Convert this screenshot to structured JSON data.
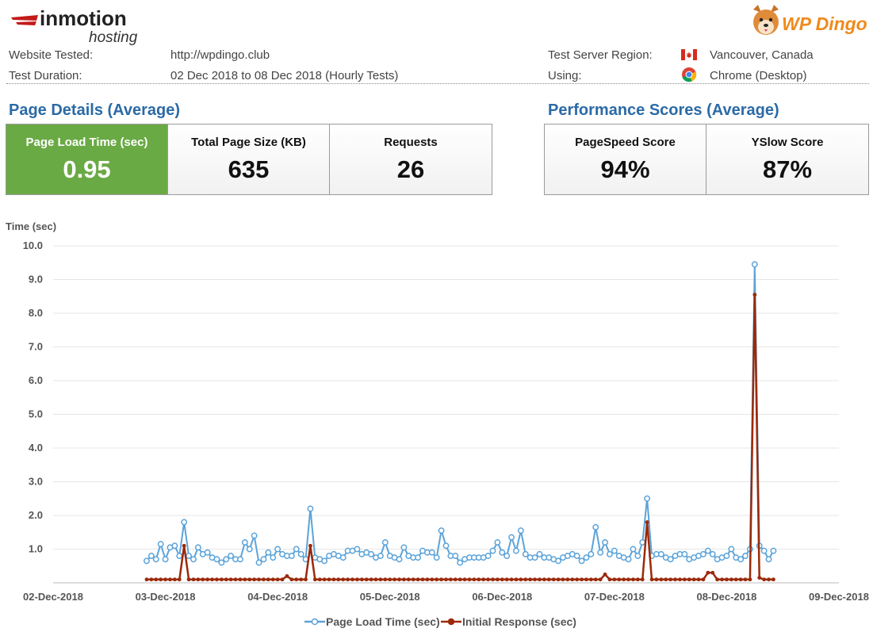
{
  "brand": {
    "inmotion_top": "inmotion",
    "inmotion_bottom": "hosting",
    "wpdingo": "WP Dingo"
  },
  "meta": {
    "website_label": "Website Tested:",
    "website_value": "http://wpdingo.club",
    "duration_label": "Test Duration:",
    "duration_value": "02 Dec 2018 to 08 Dec 2018 (Hourly Tests)",
    "region_label": "Test Server Region:",
    "region_value": "Vancouver, Canada",
    "using_label": "Using:",
    "using_value": "Chrome (Desktop)",
    "region_icon": "canada-flag-icon",
    "browser_icon": "chrome-icon"
  },
  "page_details": {
    "title": "Page Details (Average)",
    "cards": [
      {
        "label": "Page Load Time (sec)",
        "value": "0.95"
      },
      {
        "label": "Total Page Size (KB)",
        "value": "635"
      },
      {
        "label": "Requests",
        "value": "26"
      }
    ]
  },
  "performance": {
    "title": "Performance Scores (Average)",
    "cards": [
      {
        "label": "PageSpeed Score",
        "value": "94%"
      },
      {
        "label": "YSlow Score",
        "value": "87%"
      }
    ]
  },
  "colors": {
    "green_card": "#6aaa45",
    "title_blue": "#2b6aa6",
    "series_load": "#5ba3d9",
    "series_response": "#9b2a0a"
  },
  "chart_data": {
    "type": "line",
    "title": "",
    "ylabel": "Time (sec)",
    "xlabel": "",
    "ylim": [
      0,
      10
    ],
    "yticks": [
      "",
      "1.0",
      "2.0",
      "3.0",
      "4.0",
      "5.0",
      "6.0",
      "7.0",
      "8.0",
      "9.0",
      "10.0"
    ],
    "xlim": [
      "2018-12-02",
      "2018-12-09"
    ],
    "xticks": [
      "02-Dec-2018",
      "03-Dec-2018",
      "04-Dec-2018",
      "05-Dec-2018",
      "06-Dec-2018",
      "07-Dec-2018",
      "08-Dec-2018",
      "09-Dec-2018"
    ],
    "legend_position": "bottom",
    "grid": true,
    "x_start": "2018-12-02 20:00",
    "x_step_hours": 1,
    "series": [
      {
        "name": "Page Load Time (sec)",
        "color": "#5ba3d9",
        "values": [
          0.65,
          0.8,
          0.7,
          1.15,
          0.7,
          1.05,
          1.1,
          0.8,
          1.8,
          0.8,
          0.7,
          1.05,
          0.85,
          0.9,
          0.75,
          0.7,
          0.6,
          0.7,
          0.8,
          0.7,
          0.7,
          1.2,
          1.0,
          1.4,
          0.6,
          0.7,
          0.9,
          0.75,
          1.0,
          0.85,
          0.8,
          0.8,
          1.0,
          0.85,
          0.7,
          2.2,
          0.75,
          0.7,
          0.65,
          0.8,
          0.85,
          0.8,
          0.75,
          0.95,
          0.95,
          1.0,
          0.85,
          0.9,
          0.85,
          0.75,
          0.8,
          1.2,
          0.8,
          0.75,
          0.7,
          1.05,
          0.8,
          0.75,
          0.75,
          0.95,
          0.9,
          0.9,
          0.75,
          1.55,
          1.1,
          0.8,
          0.8,
          0.6,
          0.7,
          0.75,
          0.75,
          0.75,
          0.75,
          0.8,
          0.95,
          1.2,
          0.9,
          0.8,
          1.35,
          0.95,
          1.55,
          0.85,
          0.75,
          0.75,
          0.85,
          0.75,
          0.75,
          0.7,
          0.65,
          0.75,
          0.8,
          0.85,
          0.8,
          0.65,
          0.75,
          0.85,
          1.65,
          0.9,
          1.2,
          0.85,
          0.95,
          0.8,
          0.75,
          0.7,
          1.0,
          0.8,
          1.2,
          2.5,
          0.8,
          0.85,
          0.85,
          0.75,
          0.7,
          0.8,
          0.85,
          0.85,
          0.7,
          0.75,
          0.8,
          0.85,
          0.95,
          0.85,
          0.7,
          0.75,
          0.8,
          1.0,
          0.75,
          0.7,
          0.8,
          1.0,
          9.45,
          1.1,
          0.95,
          0.7,
          0.95
        ]
      },
      {
        "name": "Initial Response (sec)",
        "color": "#9b2a0a",
        "values": [
          0.1,
          0.1,
          0.1,
          0.1,
          0.1,
          0.1,
          0.1,
          0.1,
          1.1,
          0.1,
          0.1,
          0.1,
          0.1,
          0.1,
          0.1,
          0.1,
          0.1,
          0.1,
          0.1,
          0.1,
          0.1,
          0.1,
          0.1,
          0.1,
          0.1,
          0.1,
          0.1,
          0.1,
          0.1,
          0.1,
          0.2,
          0.1,
          0.1,
          0.1,
          0.1,
          1.1,
          0.1,
          0.1,
          0.1,
          0.1,
          0.1,
          0.1,
          0.1,
          0.1,
          0.1,
          0.1,
          0.1,
          0.1,
          0.1,
          0.1,
          0.1,
          0.1,
          0.1,
          0.1,
          0.1,
          0.1,
          0.1,
          0.1,
          0.1,
          0.1,
          0.1,
          0.1,
          0.1,
          0.1,
          0.1,
          0.1,
          0.1,
          0.1,
          0.1,
          0.1,
          0.1,
          0.1,
          0.1,
          0.1,
          0.1,
          0.1,
          0.1,
          0.1,
          0.1,
          0.1,
          0.1,
          0.1,
          0.1,
          0.1,
          0.1,
          0.1,
          0.1,
          0.1,
          0.1,
          0.1,
          0.1,
          0.1,
          0.1,
          0.1,
          0.1,
          0.1,
          0.1,
          0.1,
          0.25,
          0.1,
          0.1,
          0.1,
          0.1,
          0.1,
          0.1,
          0.1,
          0.1,
          1.8,
          0.1,
          0.1,
          0.1,
          0.1,
          0.1,
          0.1,
          0.1,
          0.1,
          0.1,
          0.1,
          0.1,
          0.1,
          0.3,
          0.3,
          0.1,
          0.1,
          0.1,
          0.1,
          0.1,
          0.1,
          0.1,
          0.1,
          8.55,
          0.15,
          0.1,
          0.1,
          0.1
        ]
      }
    ]
  }
}
